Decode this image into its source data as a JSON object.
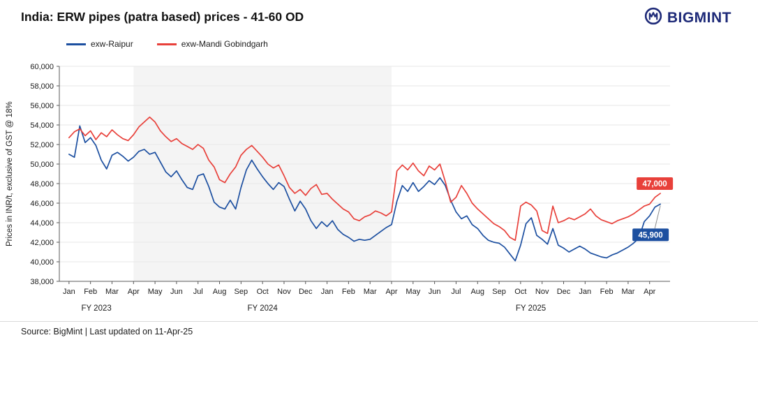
{
  "header": {
    "title": "India: ERW pipes (patra based) prices - 41-60 OD",
    "brand": "BIGMINT",
    "brand_color": "#1e2a78"
  },
  "footer": {
    "source": "Source: BigMint  | Last updated on 11-Apr-25"
  },
  "chart_data": {
    "type": "line",
    "title": "India: ERW pipes (patra based) prices - 41-60 OD",
    "ylabel": "Prices in INR/t,  exclusive of GST @ 18%",
    "ylim": [
      38000,
      60000
    ],
    "ytick_step": 2000,
    "grid": "horizontal",
    "legend_position": "top-left",
    "points_per_month": 4,
    "x_months": [
      "Jan",
      "Feb",
      "Mar",
      "Apr",
      "May",
      "Jun",
      "Jul",
      "Aug",
      "Sep",
      "Oct",
      "Nov",
      "Dec",
      "Jan",
      "Feb",
      "Mar",
      "Apr",
      "May",
      "Jun",
      "Jul",
      "Aug",
      "Sep",
      "Oct",
      "Nov",
      "Dec",
      "Jan",
      "Feb",
      "Mar",
      "Apr"
    ],
    "fy_bands": [
      {
        "label": "FY 2023",
        "start": -0.45,
        "end": 3,
        "shaded": false
      },
      {
        "label": "FY 2024",
        "start": 3,
        "end": 15,
        "shaded": true
      },
      {
        "label": "FY 2025",
        "start": 15,
        "end": 27.95,
        "shaded": false
      }
    ],
    "band_color": "#f4f4f4",
    "series": [
      {
        "name": "exw-Raipur",
        "color": "#1c4fa0",
        "end_label": "45,900",
        "values": [
          51000,
          50700,
          53900,
          52200,
          52700,
          51900,
          50400,
          49500,
          50900,
          51200,
          50800,
          50300,
          50700,
          51300,
          51500,
          51000,
          51200,
          50200,
          49200,
          48700,
          49300,
          48400,
          47600,
          47400,
          48800,
          49000,
          47700,
          46100,
          45600,
          45400,
          46300,
          45400,
          47600,
          49400,
          50400,
          49500,
          48700,
          48000,
          47400,
          48100,
          47700,
          46400,
          45200,
          46200,
          45400,
          44200,
          43400,
          44100,
          43600,
          44200,
          43300,
          42800,
          42500,
          42100,
          42300,
          42200,
          42300,
          42700,
          43100,
          43500,
          43800,
          46200,
          47800,
          47200,
          48100,
          47200,
          47700,
          48300,
          47900,
          48600,
          47800,
          46300,
          45100,
          44400,
          44700,
          43800,
          43400,
          42700,
          42200,
          42000,
          41900,
          41500,
          40800,
          40100,
          41700,
          43900,
          44500,
          42700,
          42300,
          41800,
          43400,
          41700,
          41400,
          41000,
          41300,
          41600,
          41300,
          40900,
          40700,
          40500,
          40400,
          40700,
          40900,
          41200,
          41500,
          41900,
          42400,
          44100,
          44700,
          45600,
          45900
        ]
      },
      {
        "name": "exw-Mandi Gobindgarh",
        "color": "#e8403a",
        "end_label": "47,000",
        "values": [
          52700,
          53300,
          53600,
          52900,
          53400,
          52500,
          53200,
          52800,
          53500,
          53000,
          52600,
          52400,
          53000,
          53800,
          54300,
          54800,
          54300,
          53400,
          52800,
          52300,
          52600,
          52100,
          51800,
          51500,
          52000,
          51600,
          50400,
          49700,
          48400,
          48100,
          49000,
          49700,
          50900,
          51500,
          51900,
          51300,
          50700,
          50000,
          49600,
          49900,
          48800,
          47600,
          47000,
          47400,
          46800,
          47500,
          47900,
          46900,
          47000,
          46400,
          45900,
          45400,
          45100,
          44400,
          44200,
          44600,
          44800,
          45200,
          45000,
          44700,
          45100,
          49300,
          49900,
          49400,
          50100,
          49300,
          48800,
          49800,
          49400,
          50000,
          48200,
          46100,
          46600,
          47800,
          47000,
          46000,
          45400,
          44900,
          44400,
          43900,
          43600,
          43200,
          42500,
          42200,
          45700,
          46100,
          45800,
          45200,
          43200,
          42900,
          45700,
          44000,
          44200,
          44500,
          44300,
          44600,
          44900,
          45400,
          44700,
          44300,
          44100,
          43900,
          44200,
          44400,
          44600,
          44900,
          45300,
          45700,
          45900,
          46600,
          47000
        ]
      }
    ]
  }
}
